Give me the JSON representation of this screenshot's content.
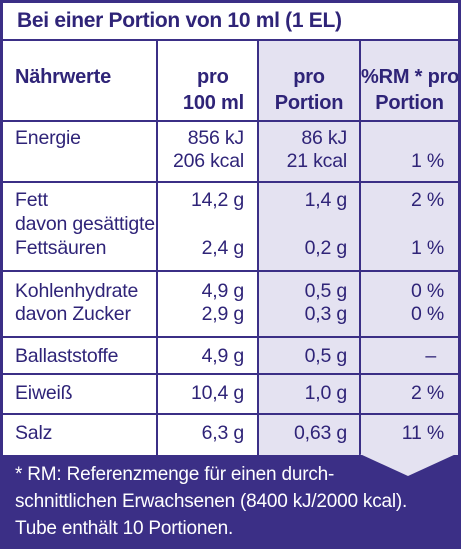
{
  "title": "Bei einer Portion von 10 ml (1 EL)",
  "headers": {
    "col1": "Nährwerte",
    "col2_line1": "pro",
    "col2_line2": "100 ml",
    "col3_line1": "pro",
    "col3_line2": "Portion",
    "col4_line1": "%RM * pro",
    "col4_line2": "Portion"
  },
  "rows": {
    "energie": {
      "label": "Energie",
      "per100_kj": "856 kJ",
      "per100_kcal": "206 kcal",
      "portion_kj": "86 kJ",
      "portion_kcal": "21 kcal",
      "rm": "1 %"
    },
    "fett": {
      "label": "Fett",
      "sub_label_1": "davon gesättigte",
      "sub_label_2": "Fettsäuren",
      "per100": "14,2 g",
      "portion": "1,4 g",
      "rm": "2 %",
      "sub_per100": "2,4 g",
      "sub_portion": "0,2 g",
      "sub_rm": "1 %"
    },
    "kohlenhydrate": {
      "label": "Kohlenhydrate",
      "sub_label": "davon Zucker",
      "per100": "4,9 g",
      "portion": "0,5 g",
      "rm": "0 %",
      "sub_per100": "2,9 g",
      "sub_portion": "0,3 g",
      "sub_rm": "0 %"
    },
    "ballaststoffe": {
      "label": "Ballaststoffe",
      "per100": "4,9 g",
      "portion": "0,5 g",
      "rm": "–"
    },
    "eiweiss": {
      "label": "Eiweiß",
      "per100": "10,4 g",
      "portion": "1,0 g",
      "rm": "2 %"
    },
    "salz": {
      "label": "Salz",
      "per100": "6,3 g",
      "portion": "0,63 g",
      "rm": "11 %"
    }
  },
  "footnote": {
    "line1": "* RM: Referenzmenge für einen durch-",
    "line2": "schnittlichen Erwachsenen (8400 kJ/2000 kcal).",
    "line3": "Tube enthält 10 Portionen."
  },
  "colors": {
    "primary": "#3b2f86",
    "shade": "#e4e2f1",
    "background": "#ffffff"
  }
}
